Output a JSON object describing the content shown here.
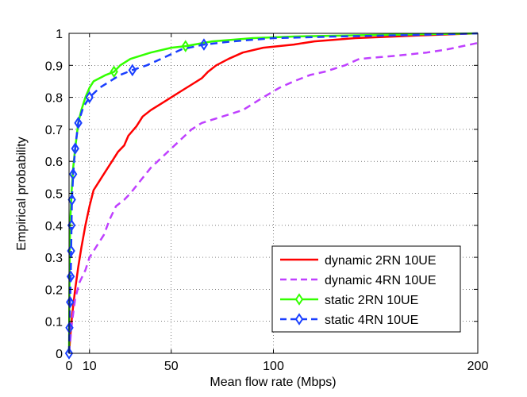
{
  "chart_data": {
    "type": "line",
    "title": "",
    "xlabel": "Mean flow rate (Mbps)",
    "ylabel": "Empirical probability",
    "xlim": [
      0,
      200
    ],
    "ylim": [
      0,
      1
    ],
    "xticks": [
      0,
      10,
      50,
      100,
      200
    ],
    "yticks": [
      0,
      0.1,
      0.2,
      0.3,
      0.4,
      0.5,
      0.6,
      0.7,
      0.8,
      0.9,
      1
    ],
    "grid": true,
    "legend_position": "bottom-right",
    "series": [
      {
        "name": "dynamic 2RN 10UE",
        "color": "#ff0000",
        "dash": "solid",
        "marker": "none",
        "points": [
          [
            0,
            0
          ],
          [
            0.6,
            0.05
          ],
          [
            1.5,
            0.12
          ],
          [
            3,
            0.2
          ],
          [
            4.5,
            0.27
          ],
          [
            6,
            0.33
          ],
          [
            8,
            0.4
          ],
          [
            10,
            0.46
          ],
          [
            12,
            0.51
          ],
          [
            15,
            0.54
          ],
          [
            18,
            0.57
          ],
          [
            21,
            0.6
          ],
          [
            24,
            0.63
          ],
          [
            27,
            0.65
          ],
          [
            29,
            0.68
          ],
          [
            33,
            0.71
          ],
          [
            36,
            0.74
          ],
          [
            40,
            0.76
          ],
          [
            45,
            0.78
          ],
          [
            50,
            0.8
          ],
          [
            55,
            0.82
          ],
          [
            60,
            0.84
          ],
          [
            65,
            0.86
          ],
          [
            68,
            0.88
          ],
          [
            72,
            0.9
          ],
          [
            78,
            0.92
          ],
          [
            85,
            0.94
          ],
          [
            95,
            0.955
          ],
          [
            110,
            0.965
          ],
          [
            120,
            0.975
          ],
          [
            140,
            0.985
          ],
          [
            170,
            0.993
          ],
          [
            200,
            1.0
          ]
        ]
      },
      {
        "name": "dynamic 4RN 10UE",
        "color": "#bf40ff",
        "dash": "dashed",
        "marker": "none",
        "points": [
          [
            0,
            0
          ],
          [
            1.5,
            0.1
          ],
          [
            3,
            0.17
          ],
          [
            5,
            0.22
          ],
          [
            8,
            0.26
          ],
          [
            10,
            0.3
          ],
          [
            13,
            0.33
          ],
          [
            17,
            0.37
          ],
          [
            20,
            0.42
          ],
          [
            23,
            0.46
          ],
          [
            27,
            0.48
          ],
          [
            30,
            0.5
          ],
          [
            35,
            0.54
          ],
          [
            40,
            0.58
          ],
          [
            45,
            0.61
          ],
          [
            50,
            0.64
          ],
          [
            55,
            0.67
          ],
          [
            60,
            0.7
          ],
          [
            65,
            0.72
          ],
          [
            75,
            0.74
          ],
          [
            85,
            0.76
          ],
          [
            95,
            0.8
          ],
          [
            103,
            0.83
          ],
          [
            110,
            0.85
          ],
          [
            118,
            0.87
          ],
          [
            125,
            0.88
          ],
          [
            135,
            0.9
          ],
          [
            142,
            0.92
          ],
          [
            160,
            0.93
          ],
          [
            175,
            0.94
          ],
          [
            185,
            0.95
          ],
          [
            200,
            0.97
          ]
        ]
      },
      {
        "name": "static 2RN 10UE",
        "color": "#33ff00",
        "dash": "solid",
        "marker": "diamond",
        "markers_at": [
          [
            22,
            0.88
          ],
          [
            57,
            0.96
          ]
        ],
        "points": [
          [
            0,
            0
          ],
          [
            0.2,
            0.2
          ],
          [
            0.5,
            0.4
          ],
          [
            1.2,
            0.5
          ],
          [
            2,
            0.58
          ],
          [
            3,
            0.64
          ],
          [
            4.5,
            0.72
          ],
          [
            6,
            0.76
          ],
          [
            8,
            0.8
          ],
          [
            10,
            0.83
          ],
          [
            12,
            0.85
          ],
          [
            15,
            0.86
          ],
          [
            18,
            0.87
          ],
          [
            22,
            0.88
          ],
          [
            25,
            0.9
          ],
          [
            30,
            0.92
          ],
          [
            35,
            0.93
          ],
          [
            40,
            0.94
          ],
          [
            50,
            0.955
          ],
          [
            57,
            0.96
          ],
          [
            70,
            0.975
          ],
          [
            90,
            0.985
          ],
          [
            110,
            0.99
          ],
          [
            150,
            0.995
          ],
          [
            200,
            1.0
          ]
        ]
      },
      {
        "name": "static 4RN 10UE",
        "color": "#1a3fff",
        "dash": "dashed",
        "marker": "diamond",
        "markers_at": [
          [
            0,
            0
          ],
          [
            0.2,
            0.08
          ],
          [
            0.5,
            0.16
          ],
          [
            0.8,
            0.24
          ],
          [
            1,
            0.32
          ],
          [
            1.2,
            0.4
          ],
          [
            1.4,
            0.48
          ],
          [
            2,
            0.56
          ],
          [
            3,
            0.64
          ],
          [
            4.5,
            0.72
          ],
          [
            10,
            0.8
          ],
          [
            31,
            0.885
          ],
          [
            66,
            0.965
          ]
        ],
        "points": [
          [
            0,
            0
          ],
          [
            0.2,
            0.08
          ],
          [
            0.5,
            0.16
          ],
          [
            0.8,
            0.24
          ],
          [
            1,
            0.32
          ],
          [
            1.2,
            0.4
          ],
          [
            1.4,
            0.48
          ],
          [
            2,
            0.56
          ],
          [
            3,
            0.64
          ],
          [
            4.5,
            0.72
          ],
          [
            7,
            0.77
          ],
          [
            10,
            0.8
          ],
          [
            15,
            0.83
          ],
          [
            20,
            0.85
          ],
          [
            25,
            0.87
          ],
          [
            31,
            0.885
          ],
          [
            38,
            0.9
          ],
          [
            45,
            0.92
          ],
          [
            55,
            0.95
          ],
          [
            66,
            0.965
          ],
          [
            80,
            0.975
          ],
          [
            100,
            0.985
          ],
          [
            130,
            0.99
          ],
          [
            170,
            0.995
          ],
          [
            200,
            1.0
          ]
        ]
      }
    ]
  }
}
